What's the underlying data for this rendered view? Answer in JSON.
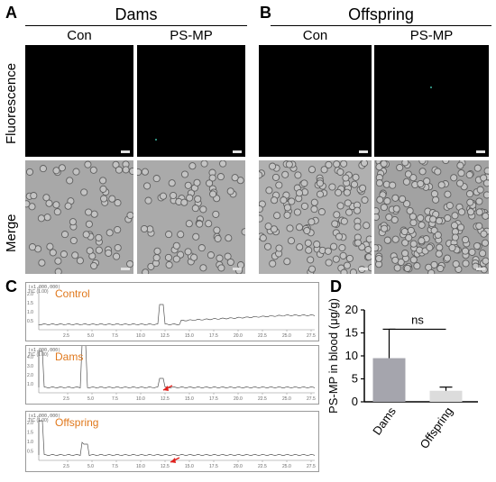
{
  "panels": {
    "A": {
      "letter": "A",
      "group_title": "Dams",
      "col_labels": [
        "Con",
        "PS-MP"
      ]
    },
    "B": {
      "letter": "B",
      "group_title": "Offspring",
      "col_labels": [
        "Con",
        "PS-MP"
      ]
    },
    "row_labels": [
      "Fluorescence",
      "Merge"
    ],
    "C": {
      "letter": "C",
      "traces": [
        {
          "name": "Control",
          "y_ticks": [
            "2.0",
            "1.5",
            "1.0",
            "0.5"
          ],
          "scale": "(x1,000,000)",
          "tic": "TIC (1.00)"
        },
        {
          "name": "Dams",
          "y_ticks": [
            "4.0",
            "3.0",
            "2.0",
            "1.0"
          ],
          "scale": "(x1,000,000)",
          "tic": "TIC (1.00)"
        },
        {
          "name": "Offspring",
          "y_ticks": [
            "2.0",
            "1.5",
            "1.0",
            "0.5"
          ],
          "scale": "(x1,000,000)",
          "tic": "TIC (1.00)"
        }
      ],
      "x_ticks": [
        "2.5",
        "5.0",
        "7.5",
        "10.0",
        "12.5",
        "15.0",
        "17.5",
        "20.0",
        "22.5",
        "25.0",
        "27.5"
      ]
    },
    "D": {
      "letter": "D"
    }
  },
  "colors": {
    "bar_dams": "#a5a5ad",
    "bar_offspring": "#dcdcdc",
    "trace_label": "#e0781c",
    "arrow": "#e0201c"
  },
  "chart_data": {
    "type": "bar",
    "categories": [
      "Dams",
      "Offspring"
    ],
    "values": [
      9.5,
      2.4
    ],
    "errors": [
      6.3,
      0.8
    ],
    "ylabel": "PS-MP in blood (μg/g)",
    "ylim": [
      0,
      20
    ],
    "yticks": [
      0,
      5,
      10,
      15,
      20
    ],
    "annotation": "ns"
  }
}
